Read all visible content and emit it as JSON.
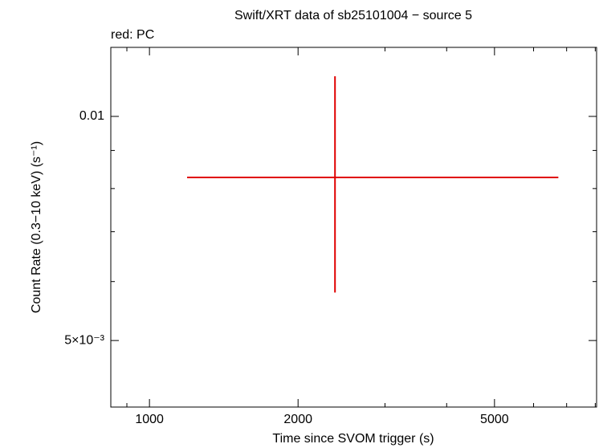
{
  "chart_data": {
    "type": "scatter",
    "title": "Swift/XRT data of sb25101004 − source 5",
    "subtitle": "red: PC",
    "x_label": "Time since SVOM trigger (s)",
    "y_label": "Count Rate (0.3−10 keV) (s⁻¹)",
    "x_log": true,
    "y_log": true,
    "xlim": [
      835,
      8050
    ],
    "ylim": [
      0.00407,
      0.01238
    ],
    "xticks": [
      1000,
      2000,
      5000
    ],
    "xminor_ticks": [
      900,
      3000,
      4000,
      6000,
      7000,
      8000
    ],
    "yticks": [
      0.01,
      {
        "value": 0.005,
        "label": "5×10⁻³"
      }
    ],
    "yminor_ticks": [
      0.009,
      0.008,
      0.007,
      0.006
    ],
    "series": [
      {
        "name": "PC",
        "color": "#e00000",
        "x": [
          2376
        ],
        "x_err_minus": [
          1184
        ],
        "x_err_plus": [
          4358
        ],
        "values": [
          0.00828
        ],
        "y_err_minus": [
          0.00248
        ],
        "y_err_plus": [
          0.00304
        ]
      }
    ]
  }
}
